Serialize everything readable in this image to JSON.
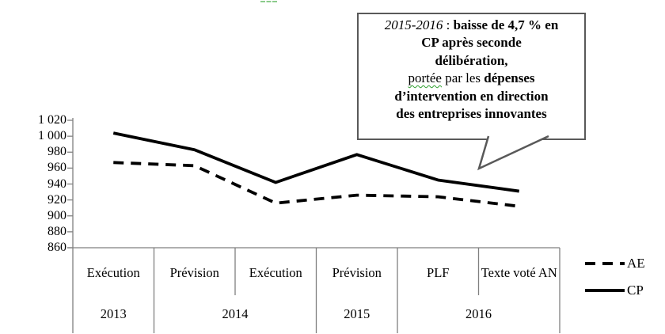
{
  "chart_data": {
    "type": "line",
    "title": "",
    "xlabel": "",
    "ylabel": "",
    "categories": [
      "Exécution",
      "Prévision",
      "Exécution",
      "Prévision",
      "PLF",
      "Texte voté AN"
    ],
    "category_groups": [
      {
        "label": "2013",
        "span": 1
      },
      {
        "label": "2014",
        "span": 2
      },
      {
        "label": "2015",
        "span": 1
      },
      {
        "label": "2016",
        "span": 2
      }
    ],
    "series": [
      {
        "name": "AE",
        "style": "dashed",
        "color": "#000000",
        "values": [
          967,
          963,
          916,
          926,
          924,
          912
        ]
      },
      {
        "name": "CP",
        "style": "solid",
        "color": "#000000",
        "values": [
          1004,
          983,
          942,
          977,
          945,
          931
        ]
      }
    ],
    "ylim": [
      860,
      1020
    ],
    "y_tick_step": 20,
    "y_tick_labels": [
      "1 020",
      "1 000",
      "980",
      "960",
      "940",
      "920",
      "900",
      "880",
      "860"
    ],
    "grid": false,
    "legend_position": "right",
    "axis_color": "#808080"
  },
  "legend": {
    "ae_label": "AE",
    "cp_label": "CP"
  },
  "callout": {
    "border_color": "#595959",
    "l1_italic": "2015-2016",
    "l1_sep": " : ",
    "l1_bold": "baisse de 4,7 % en",
    "l2_bold": "CP après seconde",
    "l3_bold": "délibération,",
    "l4_underlined": "portée",
    "l4_regular": " par les ",
    "l4_bold": "dépenses",
    "l5_bold": "d’intervention en direction",
    "l6_bold": "des entreprises innovantes"
  }
}
